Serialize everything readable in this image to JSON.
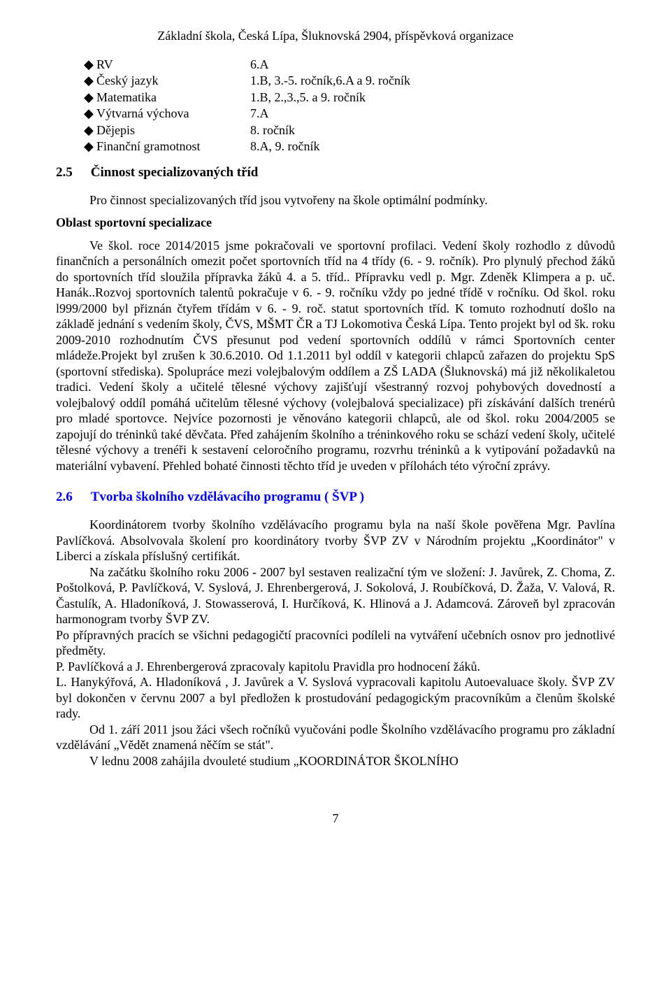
{
  "header": {
    "title": "Základní škola, Česká Lípa, Šluknovská 2904, příspěvková organizace"
  },
  "subjects": [
    {
      "bullet": "◆",
      "label": "RV",
      "value": "6.A"
    },
    {
      "bullet": "◆",
      "label": "Český jazyk",
      "value": "1.B, 3.-5. ročník,6.A a 9. ročník"
    },
    {
      "bullet": "◆",
      "label": "Matematika",
      "value": "1.B, 2.,3.,5. a 9. ročník"
    },
    {
      "bullet": "◆",
      "label": "Výtvarná výchova",
      "value": "7.A"
    },
    {
      "bullet": "◆",
      "label": "Dějepis",
      "value": "8. ročník"
    },
    {
      "bullet": "◆",
      "label": "Finanční gramotnost",
      "value": "8.A, 9. ročník"
    }
  ],
  "section25": {
    "number": "2.5",
    "title": "Činnost specializovaných tříd",
    "para1": "Pro činnost specializovaných tříd jsou vytvořeny na škole optimální podmínky.",
    "oblast": "Oblast sportovní specializace",
    "para2": "Ve škol. roce 2014/2015 jsme pokračovali ve sportovní profilaci. Vedení školy rozhodlo z důvodů finančních a personálních omezit počet sportovních tříd na 4 třídy (6. - 9. ročník). Pro plynulý přechod žáků do sportovních tříd sloužila přípravka žáků 4. a 5. tříd.. Přípravku vedl p. Mgr. Zdeněk Klimpera a p. uč. Hanák..Rozvoj sportovních talentů pokračuje v 6. - 9. ročníku vždy po jedné třídě v ročníku. Od škol. roku l999/2000 byl přiznán čtyřem třídám v 6. - 9. roč. statut sportovních tříd. K tomuto rozhodnutí došlo na základě jednání s vedením školy, ČVS, MŠMT ČR a TJ Lokomotiva Česká Lípa. Tento projekt byl od šk. roku 2009-2010 rozhodnutím ČVS přesunut pod vedení sportovních oddílů v rámci Sportovních center mládeže.Projekt byl zrušen k 30.6.2010. Od  1.1.2011  byl  oddíl  v kategorii  chlapců  zařazen  do  projektu  SpS  (sportovní  střediska). Spolupráce mezi volejbalovým oddílem a ZŠ LADA (Šluknovská) má již několikaletou tradici. Vedení školy a učitelé tělesné výchovy zajišťují všestranný rozvoj pohybových dovedností a volejbalový oddíl pomáhá učitelům tělesné výchovy (volejbalová specializace) při získávání dalších trenérů pro mladé sportovce. Nejvíce pozornosti je věnováno kategorii chlapců, ale od škol. roku 2004/2005 se zapojují do tréninků také děvčata. Před zahájením školního a tréninkového roku se schází vedení školy, učitelé tělesné výchovy a trenéři k sestavení celoročního programu, rozvrhu tréninků a k vytipování požadavků na materiální vybavení. Přehled bohaté činnosti těchto tříd je uveden v přílohách této výroční zprávy."
  },
  "section26": {
    "number": "2.6",
    "title": "Tvorba školního vzdělávacího programu ( ŠVP )",
    "para1": "Koordinátorem tvorby školního vzdělávacího programu byla na naší škole pověřena Mgr. Pavlína Pavlíčková. Absolvovala školení pro koordinátory tvorby ŠVP ZV v Národním projektu „Koordinátor\" v Liberci a získala příslušný certifikát.",
    "para2": "Na začátku školního roku 2006 - 2007 byl sestaven realizační tým ve složení: J. Javůrek, Z. Choma, Z. Poštolková, P. Pavlíčková, V. Syslová, J. Ehrenbergerová, J. Sokolová, J. Roubíčková, D. Žaža, V. Valová, R. Častulík, A. Hladoníková, J. Stowasserová, I. Hurčíková, K. Hlinová a J. Adamcová. Zároveň byl zpracován harmonogram tvorby ŠVP ZV.",
    "para3": "Po přípravných pracích se všichni pedagogičtí pracovníci podíleli na vytváření učebních osnov pro jednotlivé předměty.",
    "para4": "P. Pavlíčková a  J. Ehrenbergerová zpracovaly kapitolu Pravidla pro hodnocení žáků.",
    "para5": "L. Hanykýřová, A. Hladoníková , J. Javůrek a V. Syslová vypracovali kapitolu Autoevaluace školy. ŠVP ZV byl dokončen v červnu 2007 a byl předložen k prostudování pedagogickým pracovníkům a členům školské rady.",
    "para6": "Od 1. září 2011 jsou žáci všech ročníků vyučováni podle Školního vzdělávacího programu pro základní vzdělávání „Vědět znamená něčím se stát\".",
    "para7": "V lednu 2008 zahájila dvouleté studium „KOORDINÁTOR ŠKOLNÍHO"
  },
  "pageNumber": "7"
}
